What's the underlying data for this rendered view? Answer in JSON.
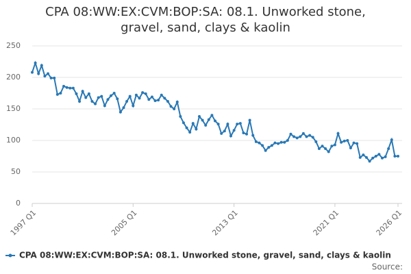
{
  "chart_data": {
    "type": "line",
    "title": "CPA 08:WW:EX:CVM:BOP:SA: 08.1. Unworked stone, gravel, sand, clays & kaolin",
    "source": "Source:",
    "categories": [
      "1997 Q1",
      null,
      null,
      null,
      null,
      null,
      null,
      null,
      null,
      null,
      null,
      null,
      null,
      null,
      null,
      null,
      null,
      null,
      null,
      null,
      null,
      null,
      null,
      null,
      null,
      null,
      null,
      null,
      null,
      null,
      null,
      null,
      "2005 Q1",
      null,
      null,
      null,
      null,
      null,
      null,
      null,
      null,
      null,
      null,
      null,
      null,
      null,
      null,
      null,
      null,
      null,
      null,
      null,
      null,
      null,
      null,
      null,
      null,
      null,
      null,
      null,
      null,
      null,
      null,
      null,
      "2013 Q1",
      null,
      null,
      null,
      null,
      null,
      null,
      null,
      null,
      null,
      null,
      null,
      null,
      null,
      null,
      null,
      null,
      null,
      null,
      null,
      null,
      null,
      null,
      null,
      null,
      null,
      null,
      null,
      null,
      null,
      null,
      null,
      "2021 Q1",
      null,
      null,
      null,
      null,
      null,
      null,
      null,
      null,
      null,
      null,
      null,
      null,
      null,
      null,
      null,
      null,
      null,
      null,
      null,
      "2026 Q1"
    ],
    "series": [
      {
        "name": "CPA 08:WW:EX:CVM:BOP:SA: 08.1. Unworked stone, gravel, sand, clays & kaolin",
        "color": "#2878b5",
        "values": [
          208,
          223,
          206,
          219,
          202,
          206,
          199,
          199,
          173,
          175,
          186,
          184,
          183,
          183,
          174,
          162,
          178,
          168,
          174,
          162,
          158,
          168,
          170,
          155,
          165,
          171,
          175,
          166,
          145,
          152,
          162,
          170,
          155,
          172,
          167,
          176,
          174,
          165,
          169,
          163,
          164,
          172,
          167,
          162,
          154,
          150,
          161,
          138,
          128,
          120,
          113,
          127,
          118,
          138,
          132,
          124,
          133,
          140,
          131,
          126,
          111,
          115,
          126,
          107,
          116,
          126,
          127,
          112,
          110,
          132,
          108,
          98,
          96,
          92,
          84,
          89,
          92,
          96,
          95,
          97,
          97,
          100,
          110,
          106,
          104,
          106,
          111,
          106,
          108,
          105,
          98,
          87,
          91,
          87,
          82,
          91,
          93,
          111,
          97,
          99,
          100,
          88,
          96,
          95,
          73,
          77,
          73,
          67,
          72,
          75,
          78,
          72,
          74,
          87,
          101,
          75,
          75
        ]
      }
    ],
    "ylim": [
      0,
      250
    ],
    "yticks": [
      0,
      50,
      100,
      150,
      200,
      250
    ],
    "grid": true
  }
}
